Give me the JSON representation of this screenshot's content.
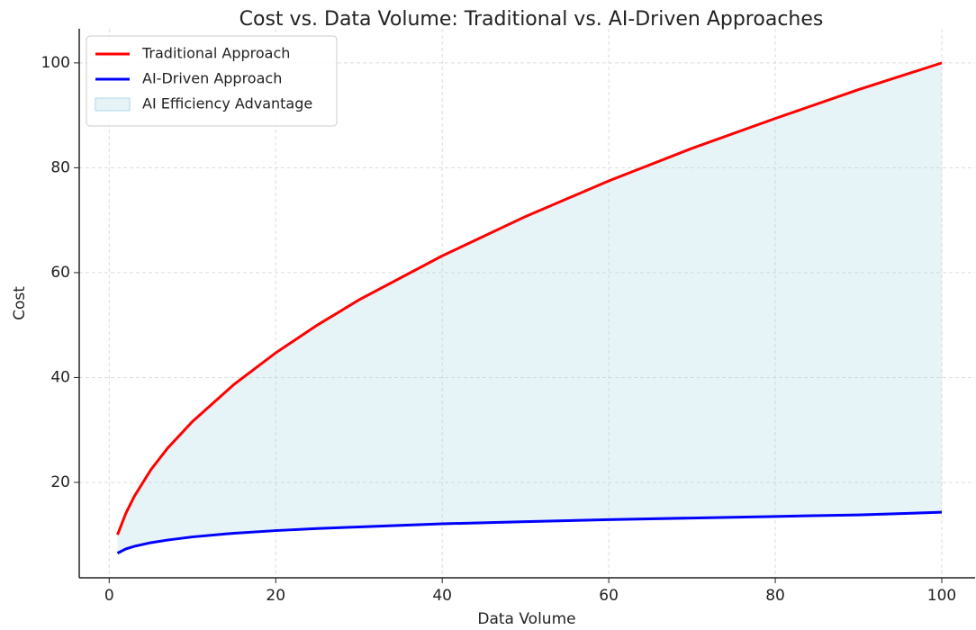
{
  "chart_data": {
    "type": "line",
    "title": "Cost vs. Data Volume: Traditional vs. AI-Driven Approaches",
    "xlabel": "Data Volume",
    "ylabel": "Cost",
    "x": [
      1,
      2,
      3,
      5,
      7,
      10,
      15,
      20,
      25,
      30,
      40,
      50,
      60,
      70,
      80,
      90,
      100
    ],
    "series": [
      {
        "name": "Traditional Approach",
        "color": "#ff0000",
        "values": [
          10,
          14.1,
          17.3,
          22.4,
          26.5,
          31.6,
          38.7,
          44.7,
          50,
          54.8,
          63.2,
          70.7,
          77.5,
          83.7,
          89.4,
          94.9,
          100
        ]
      },
      {
        "name": "AI-Driven Approach",
        "color": "#0000ff",
        "values": [
          6.5,
          7.3,
          7.8,
          8.5,
          9.0,
          9.6,
          10.3,
          10.8,
          11.2,
          11.5,
          12.1,
          12.5,
          12.9,
          13.2,
          13.5,
          13.8,
          14.3
        ]
      }
    ],
    "fill": {
      "name": "AI Efficiency Advantage",
      "color": "#add8e6"
    },
    "xlim": [
      -3.6,
      104
    ],
    "ylim": [
      1.8,
      106.5
    ],
    "xticks": [
      0,
      20,
      40,
      60,
      80,
      100
    ],
    "yticks": [
      20,
      40,
      60,
      80,
      100
    ],
    "grid": true,
    "legend": "upper-left"
  }
}
